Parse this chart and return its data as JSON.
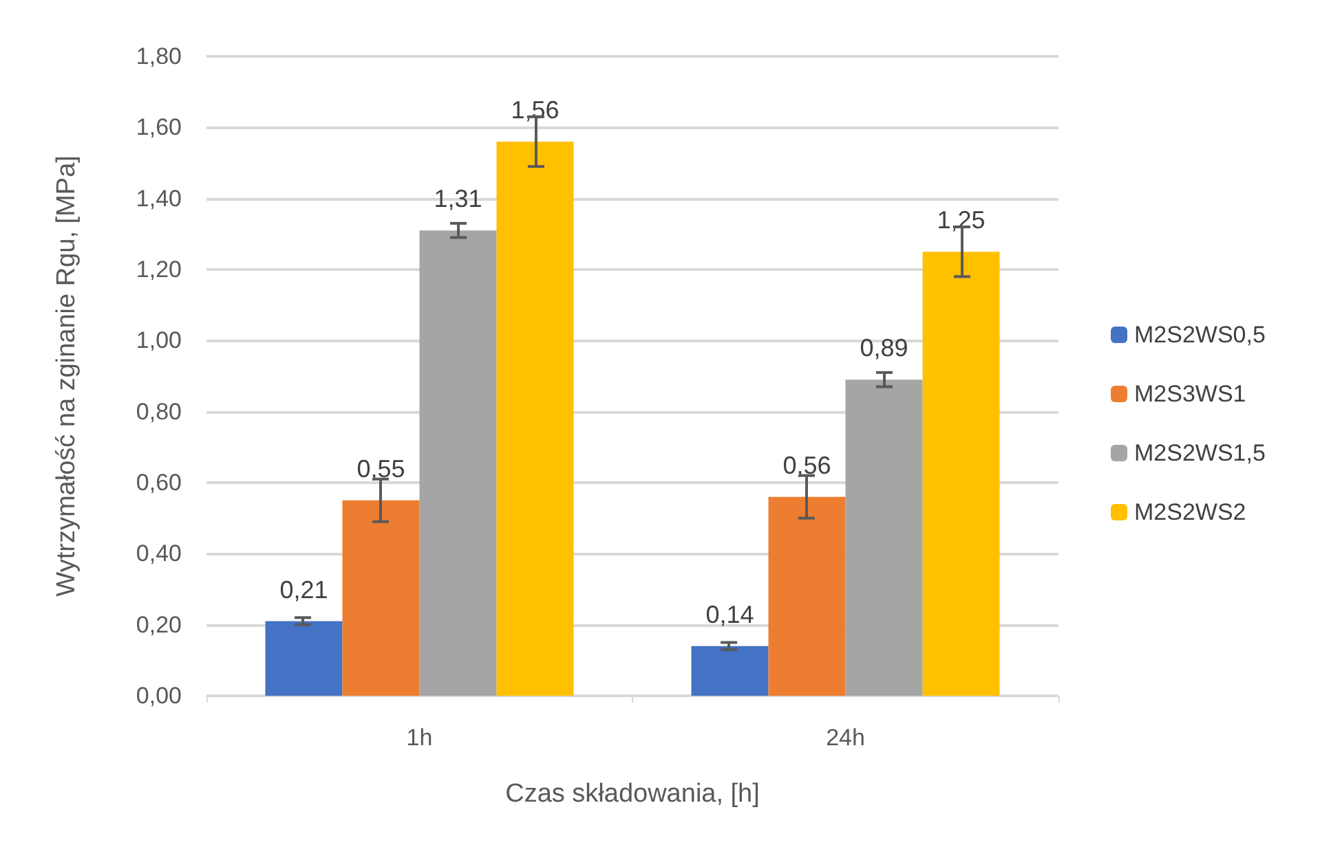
{
  "chart_data": {
    "type": "bar",
    "xlabel": "Czas składowania, [h]",
    "ylabel": "Wytrzymałość na zginanie Rgu, [MPa]",
    "categories": [
      "1h",
      "24h"
    ],
    "series": [
      {
        "name": "M2S2WS0,5",
        "color": "#4472c4",
        "values": [
          0.21,
          0.14
        ],
        "errors": [
          0.01,
          0.01
        ],
        "value_labels": [
          "0,21",
          "0,14"
        ]
      },
      {
        "name": "M2S3WS1",
        "color": "#ed7d31",
        "values": [
          0.55,
          0.56
        ],
        "errors": [
          0.06,
          0.06
        ],
        "value_labels": [
          "0,55",
          "0,56"
        ]
      },
      {
        "name": "M2S2WS1,5",
        "color": "#a5a5a5",
        "values": [
          1.31,
          0.89
        ],
        "errors": [
          0.02,
          0.02
        ],
        "value_labels": [
          "1,31",
          "0,89"
        ]
      },
      {
        "name": "M2S2WS2",
        "color": "#ffc000",
        "values": [
          1.56,
          1.25
        ],
        "errors": [
          0.07,
          0.07
        ],
        "value_labels": [
          "1,56",
          "1,25"
        ]
      }
    ],
    "ylim": [
      0,
      1.8
    ],
    "yticks": [
      {
        "value": 0,
        "label": "0,00"
      },
      {
        "value": 0.2,
        "label": "0,20"
      },
      {
        "value": 0.4,
        "label": "0,40"
      },
      {
        "value": 0.6,
        "label": "0,60"
      },
      {
        "value": 0.8,
        "label": "0,80"
      },
      {
        "value": 1,
        "label": "1,00"
      },
      {
        "value": 1.2,
        "label": "1,20"
      },
      {
        "value": 1.4,
        "label": "1,40"
      },
      {
        "value": 1.6,
        "label": "1,60"
      },
      {
        "value": 1.8,
        "label": "1,80"
      }
    ],
    "grid": "y",
    "legend": "right"
  }
}
